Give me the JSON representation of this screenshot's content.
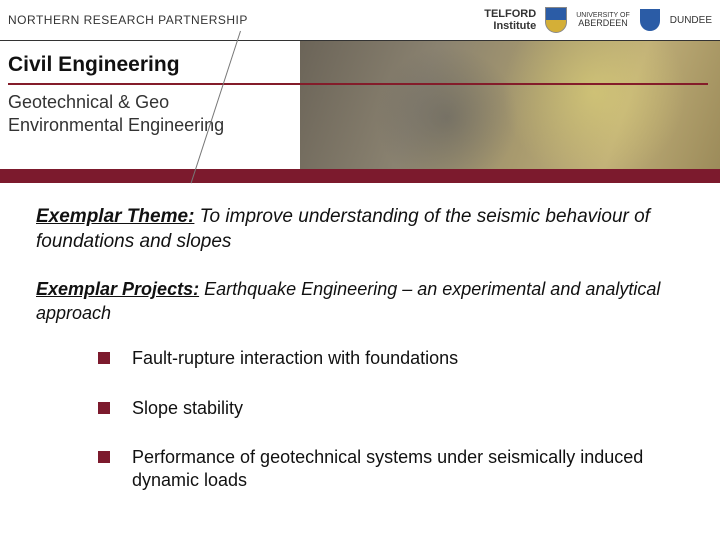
{
  "colors": {
    "maroon": "#7c1a2d",
    "maroon_divider": "#841c2a",
    "text": "#111111",
    "subtext": "#333333",
    "background": "#ffffff"
  },
  "header": {
    "partnership": "NORTHERN RESEARCH PARTNERSHIP",
    "telford_line1": "TELFORD",
    "telford_line2": "Institute",
    "aberdeen_top": "UNIVERSITY",
    "aberdeen_of": "OF",
    "aberdeen_name": "ABERDEEN",
    "dundee": "DUNDEE"
  },
  "banner": {
    "title": "Civil Engineering",
    "subtitle_line1": "Geotechnical & Geo",
    "subtitle_line2": "Environmental Engineering"
  },
  "content": {
    "theme_label": "Exemplar Theme:",
    "theme_text": " To improve understanding of the seismic behaviour of foundations and slopes",
    "projects_label": "Exemplar Projects:",
    "projects_text": " Earthquake Engineering – an experimental and analytical approach",
    "bullets": [
      "Fault-rupture interaction with foundations",
      "Slope stability",
      "Performance of geotechnical systems under seismically induced dynamic loads"
    ]
  },
  "typography": {
    "body_font": "Arial",
    "title_size_pt": 16,
    "subtitle_size_pt": 14,
    "content_size_pt": 14,
    "bullet_size_pt": 14,
    "header_label_size_pt": 9
  }
}
